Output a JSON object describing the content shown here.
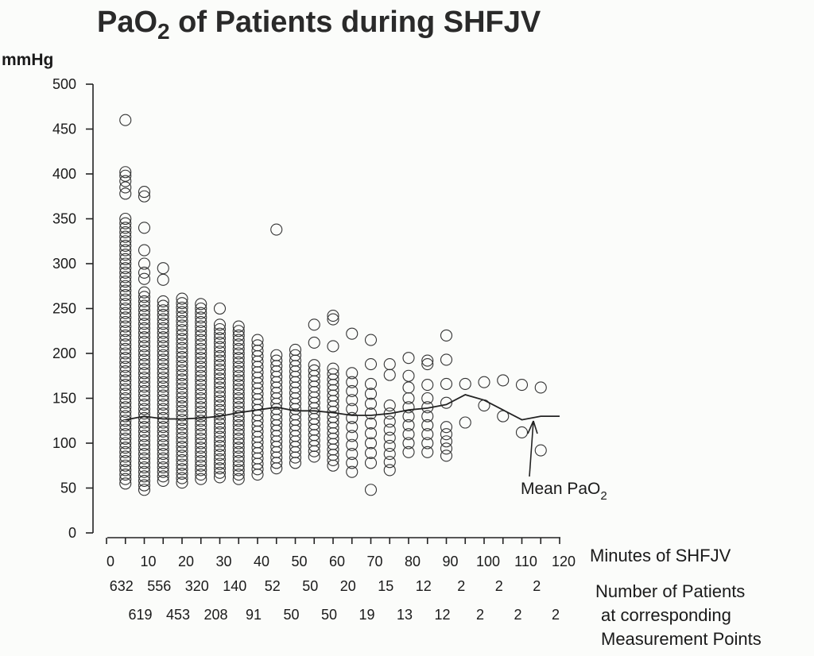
{
  "chart_data": {
    "type": "scatter",
    "title": "PaO2 of Patients during SHFJV",
    "title_main": "PaO",
    "title_sub": "2",
    "title_rest": " of Patients during SHFJV",
    "ylabel": "mmHg",
    "xlabel": "Minutes of SHFJV",
    "ylim": [
      0,
      500
    ],
    "xlim": [
      0,
      120
    ],
    "yticks": [
      "0",
      "50",
      "100",
      "150",
      "200",
      "250",
      "300",
      "350",
      "400",
      "450",
      "500"
    ],
    "xticks": [
      "0",
      "10",
      "20",
      "30",
      "40",
      "50",
      "60",
      "70",
      "80",
      "90",
      "100",
      "110",
      "120"
    ],
    "patient_counts_label": [
      "Number of Patients",
      "at corresponding",
      "Measurement Points"
    ],
    "patient_counts_row1": [
      {
        "x": 5,
        "label": "632"
      },
      {
        "x": 15,
        "label": "556"
      },
      {
        "x": 25,
        "label": "320"
      },
      {
        "x": 35,
        "label": "140"
      },
      {
        "x": 45,
        "label": "52"
      },
      {
        "x": 55,
        "label": "50"
      },
      {
        "x": 65,
        "label": "20"
      },
      {
        "x": 75,
        "label": "15"
      },
      {
        "x": 85,
        "label": "12"
      },
      {
        "x": 95,
        "label": "2"
      },
      {
        "x": 105,
        "label": "2"
      },
      {
        "x": 115,
        "label": "2"
      }
    ],
    "patient_counts_row2": [
      {
        "x": 10,
        "label": "619"
      },
      {
        "x": 20,
        "label": "453"
      },
      {
        "x": 30,
        "label": "208"
      },
      {
        "x": 40,
        "label": "91"
      },
      {
        "x": 50,
        "label": "50"
      },
      {
        "x": 60,
        "label": "50"
      },
      {
        "x": 70,
        "label": "19"
      },
      {
        "x": 80,
        "label": "13"
      },
      {
        "x": 90,
        "label": "12"
      },
      {
        "x": 100,
        "label": "2"
      },
      {
        "x": 110,
        "label": "2"
      },
      {
        "x": 120,
        "label": "2"
      }
    ],
    "series": [
      {
        "name": "Mean PaO2",
        "name_main": "Mean PaO",
        "name_sub": "2",
        "type": "line",
        "x": [
          5,
          10,
          15,
          20,
          25,
          30,
          35,
          40,
          45,
          50,
          55,
          60,
          65,
          70,
          75,
          80,
          85,
          90,
          95,
          100,
          105,
          110,
          115,
          120
        ],
        "y": [
          126,
          130,
          127,
          127,
          128,
          130,
          134,
          137,
          140,
          136,
          136,
          134,
          131,
          131,
          133,
          137,
          139,
          143,
          154,
          148,
          137,
          126,
          130,
          130
        ]
      },
      {
        "name": "PaO2",
        "type": "scatter",
        "columns": [
          {
            "x": 5,
            "min": 55,
            "max": 350,
            "step": 5,
            "extra": [
              460,
              402,
              398,
              392,
              385,
              378
            ]
          },
          {
            "x": 10,
            "min": 48,
            "max": 270,
            "step": 5,
            "extra": [
              380,
              375,
              340,
              315,
              300,
              290,
              283
            ]
          },
          {
            "x": 15,
            "min": 58,
            "max": 258,
            "step": 5,
            "extra": [
              295,
              282
            ]
          },
          {
            "x": 20,
            "min": 56,
            "max": 262,
            "step": 5,
            "extra": []
          },
          {
            "x": 25,
            "min": 60,
            "max": 255,
            "step": 5,
            "extra": []
          },
          {
            "x": 30,
            "min": 62,
            "max": 235,
            "step": 5,
            "extra": [
              250
            ]
          },
          {
            "x": 35,
            "min": 60,
            "max": 232,
            "step": 5,
            "extra": []
          },
          {
            "x": 40,
            "min": 65,
            "max": 215,
            "step": 6,
            "extra": []
          },
          {
            "x": 45,
            "min": 72,
            "max": 200,
            "step": 6,
            "extra": [
              338
            ]
          },
          {
            "x": 50,
            "min": 78,
            "max": 206,
            "step": 6,
            "extra": []
          },
          {
            "x": 55,
            "min": 85,
            "max": 190,
            "step": 6,
            "extra": [
              232,
              212
            ]
          },
          {
            "x": 60,
            "min": 75,
            "max": 185,
            "step": 6,
            "extra": [
              242,
              238,
              208
            ]
          },
          {
            "x": 65,
            "min": 68,
            "max": 185,
            "step": 10,
            "extra": [
              222
            ]
          },
          {
            "x": 70,
            "min": 78,
            "max": 170,
            "step": 11,
            "extra": [
              215,
              188,
              48
            ]
          },
          {
            "x": 75,
            "min": 70,
            "max": 150,
            "step": 9,
            "extra": [
              188,
              176
            ]
          },
          {
            "x": 80,
            "min": 90,
            "max": 150,
            "step": 10,
            "extra": [
              195,
              175,
              162
            ]
          },
          {
            "x": 85,
            "min": 90,
            "max": 150,
            "step": 10,
            "extra": [
              192,
              188,
              165
            ]
          },
          {
            "x": 90,
            "min": 86,
            "max": 125,
            "step": 8,
            "extra": [
              220,
              193,
              166,
              145
            ]
          },
          {
            "x": 95,
            "min": 123,
            "max": 123,
            "step": 10,
            "extra": [
              166
            ]
          },
          {
            "x": 100,
            "min": 142,
            "max": 142,
            "step": 10,
            "extra": [
              168
            ]
          },
          {
            "x": 105,
            "min": 130,
            "max": 130,
            "step": 10,
            "extra": [
              170
            ]
          },
          {
            "x": 110,
            "min": 112,
            "max": 112,
            "step": 10,
            "extra": [
              165
            ]
          },
          {
            "x": 115,
            "min": 92,
            "max": 92,
            "step": 10,
            "extra": [
              162
            ]
          }
        ]
      }
    ]
  }
}
